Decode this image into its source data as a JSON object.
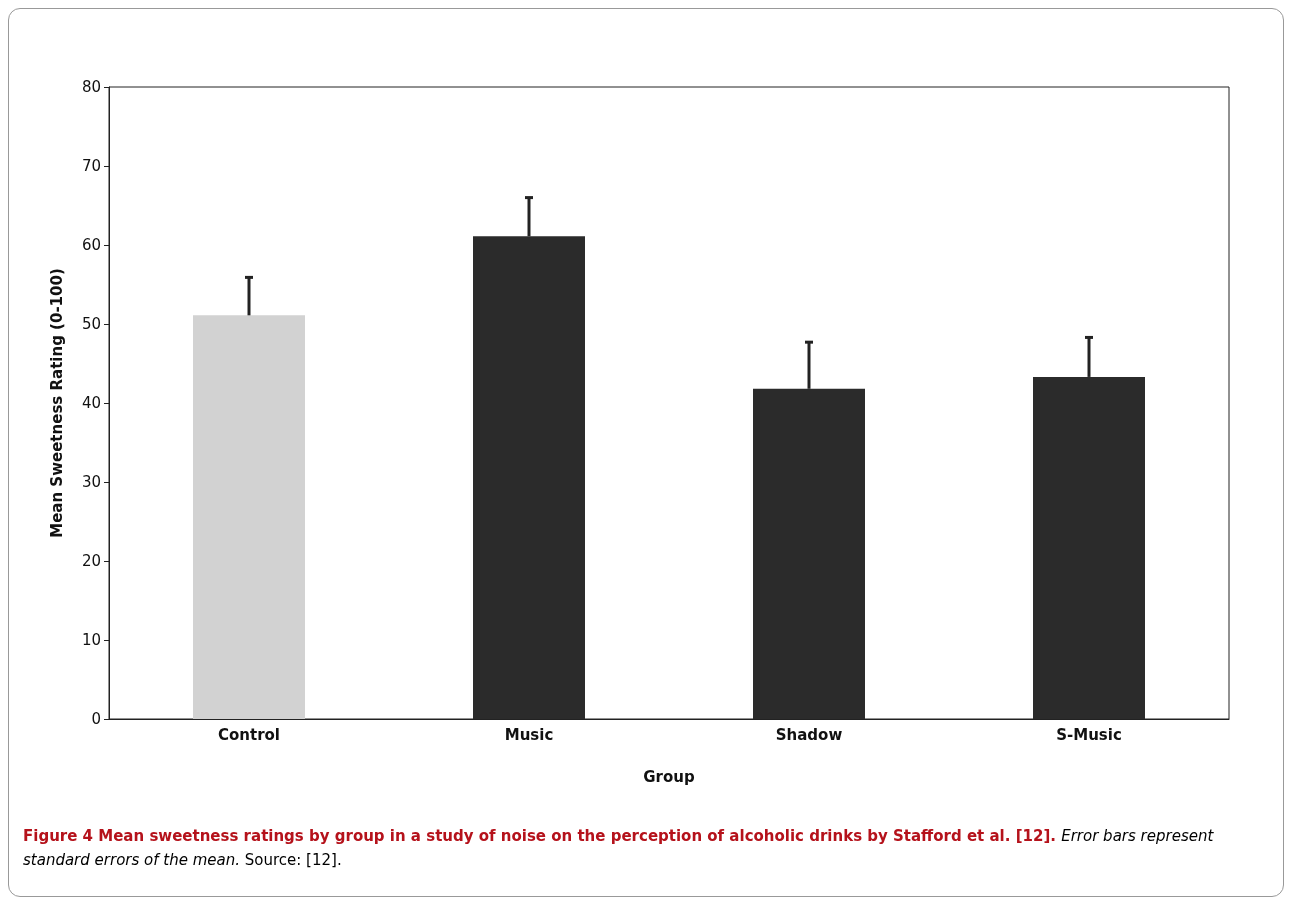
{
  "chart_data": {
    "type": "bar",
    "xlabel": "Group",
    "ylabel": "Mean Sweetness Rating (0-100)",
    "categories": [
      "Control",
      "Music",
      "Shadow",
      "S-Music"
    ],
    "values": [
      51.1,
      61.1,
      41.8,
      43.3
    ],
    "colors": [
      "#d2d2d2",
      "#2b2b2b",
      "#2b2b2b",
      "#2b2b2b"
    ],
    "errors": [
      [
        51.1,
        55.9
      ],
      [
        61.1,
        66
      ],
      [
        41.8,
        47.7
      ],
      [
        43.3,
        48.3
      ]
    ],
    "ylim": [
      0,
      80
    ],
    "yticks": [
      0,
      10,
      20,
      30,
      40,
      50,
      60,
      70,
      80
    ],
    "annotations": [
      "Figure 4 Mean sweetness ratings by group in a study of noise on the perception of alcoholic drinks by Stafford et al. [12].",
      "Error bars represent standard errors of the mean.",
      "Source: [12]."
    ]
  }
}
